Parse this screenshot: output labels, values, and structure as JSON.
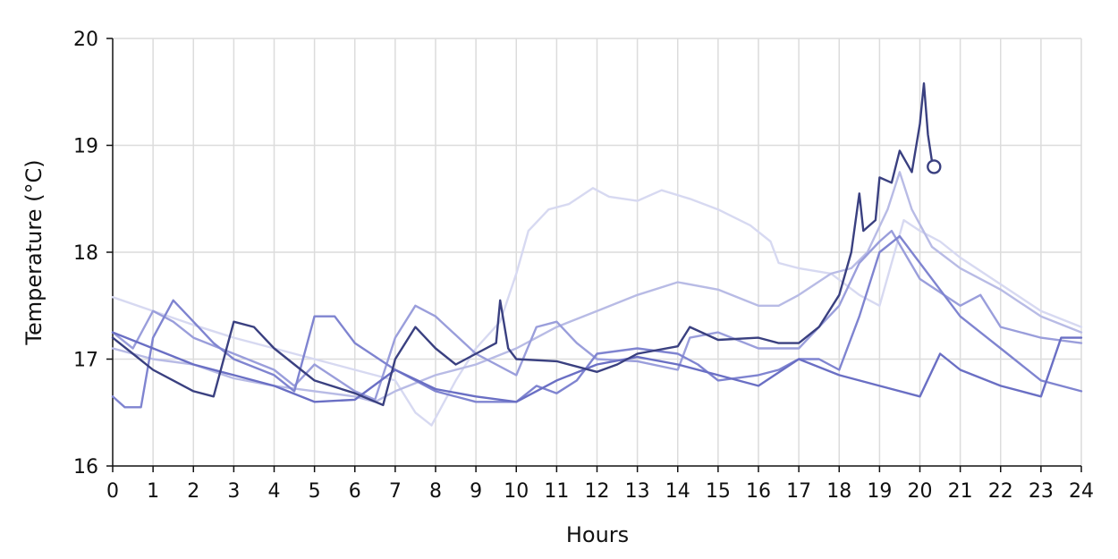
{
  "chart_data": {
    "type": "line",
    "title": "",
    "xlabel": "Hours",
    "ylabel": "Temperature (°C)",
    "xlim": [
      0,
      24
    ],
    "ylim": [
      16,
      20
    ],
    "xticks": [
      0,
      1,
      2,
      3,
      4,
      5,
      6,
      7,
      8,
      9,
      10,
      11,
      12,
      13,
      14,
      15,
      16,
      17,
      18,
      19,
      20,
      21,
      22,
      23,
      24
    ],
    "yticks": [
      16,
      17,
      18,
      19,
      20
    ],
    "grid": true,
    "legend": "none",
    "series": [
      {
        "color": "#d7d9f1",
        "points": [
          [
            0,
            17.58
          ],
          [
            1,
            17.45
          ],
          [
            2,
            17.32
          ],
          [
            3,
            17.2
          ],
          [
            4,
            17.1
          ],
          [
            5,
            17.0
          ],
          [
            6,
            16.9
          ],
          [
            7,
            16.8
          ],
          [
            7.5,
            16.5
          ],
          [
            7.9,
            16.38
          ],
          [
            8.5,
            16.8
          ],
          [
            9,
            17.1
          ],
          [
            9.6,
            17.35
          ],
          [
            10,
            17.8
          ],
          [
            10.3,
            18.2
          ],
          [
            10.8,
            18.4
          ],
          [
            11.3,
            18.45
          ],
          [
            11.9,
            18.6
          ],
          [
            12.3,
            18.52
          ],
          [
            13,
            18.48
          ],
          [
            13.6,
            18.58
          ],
          [
            14.3,
            18.5
          ],
          [
            15,
            18.4
          ],
          [
            15.8,
            18.25
          ],
          [
            16.3,
            18.1
          ],
          [
            16.5,
            17.9
          ],
          [
            17,
            17.85
          ],
          [
            17.8,
            17.8
          ],
          [
            18.5,
            17.6
          ],
          [
            19,
            17.5
          ],
          [
            19.3,
            17.9
          ],
          [
            19.6,
            18.3
          ],
          [
            20,
            18.2
          ],
          [
            20.5,
            18.1
          ],
          [
            21,
            17.95
          ],
          [
            22,
            17.7
          ],
          [
            23,
            17.45
          ],
          [
            24,
            17.3
          ]
        ]
      },
      {
        "color": "#b8bbe5",
        "points": [
          [
            0,
            17.1
          ],
          [
            1,
            17.0
          ],
          [
            2,
            16.95
          ],
          [
            3,
            16.82
          ],
          [
            4,
            16.75
          ],
          [
            5,
            16.7
          ],
          [
            6,
            16.65
          ],
          [
            6.5,
            16.6
          ],
          [
            7,
            16.7
          ],
          [
            8,
            16.85
          ],
          [
            9,
            16.95
          ],
          [
            10,
            17.1
          ],
          [
            11,
            17.3
          ],
          [
            12,
            17.45
          ],
          [
            13,
            17.6
          ],
          [
            14,
            17.72
          ],
          [
            15,
            17.65
          ],
          [
            16,
            17.5
          ],
          [
            16.5,
            17.5
          ],
          [
            17,
            17.6
          ],
          [
            17.8,
            17.8
          ],
          [
            18.3,
            17.85
          ],
          [
            18.7,
            18.0
          ],
          [
            19.2,
            18.4
          ],
          [
            19.5,
            18.75
          ],
          [
            19.8,
            18.4
          ],
          [
            20.3,
            18.05
          ],
          [
            21,
            17.85
          ],
          [
            22,
            17.65
          ],
          [
            23,
            17.4
          ],
          [
            24,
            17.25
          ]
        ]
      },
      {
        "color": "#9a9edb",
        "points": [
          [
            0,
            17.25
          ],
          [
            0.5,
            17.1
          ],
          [
            1,
            17.45
          ],
          [
            1.5,
            17.35
          ],
          [
            2,
            17.2
          ],
          [
            3,
            17.05
          ],
          [
            4,
            16.9
          ],
          [
            4.5,
            16.75
          ],
          [
            5,
            16.95
          ],
          [
            6,
            16.7
          ],
          [
            6.5,
            16.62
          ],
          [
            7,
            17.2
          ],
          [
            7.5,
            17.5
          ],
          [
            8,
            17.4
          ],
          [
            9,
            17.05
          ],
          [
            10,
            16.85
          ],
          [
            10.5,
            17.3
          ],
          [
            11,
            17.35
          ],
          [
            11.5,
            17.15
          ],
          [
            12,
            17.0
          ],
          [
            13,
            16.98
          ],
          [
            14,
            16.9
          ],
          [
            14.3,
            17.2
          ],
          [
            15,
            17.25
          ],
          [
            16,
            17.1
          ],
          [
            17,
            17.1
          ],
          [
            18,
            17.5
          ],
          [
            18.5,
            17.9
          ],
          [
            19,
            18.1
          ],
          [
            19.3,
            18.2
          ],
          [
            20,
            17.75
          ],
          [
            21,
            17.5
          ],
          [
            21.5,
            17.6
          ],
          [
            22,
            17.3
          ],
          [
            23,
            17.2
          ],
          [
            24,
            17.15
          ]
        ]
      },
      {
        "color": "#7f84d0",
        "points": [
          [
            0,
            16.65
          ],
          [
            0.3,
            16.55
          ],
          [
            0.7,
            16.55
          ],
          [
            1,
            17.2
          ],
          [
            1.5,
            17.55
          ],
          [
            2,
            17.35
          ],
          [
            2.5,
            17.15
          ],
          [
            3,
            17.0
          ],
          [
            4,
            16.85
          ],
          [
            4.5,
            16.7
          ],
          [
            5,
            17.4
          ],
          [
            5.5,
            17.4
          ],
          [
            6,
            17.15
          ],
          [
            7,
            16.9
          ],
          [
            8,
            16.7
          ],
          [
            9,
            16.6
          ],
          [
            10,
            16.6
          ],
          [
            10.5,
            16.75
          ],
          [
            11,
            16.68
          ],
          [
            11.5,
            16.8
          ],
          [
            12,
            17.05
          ],
          [
            13,
            17.1
          ],
          [
            14,
            17.05
          ],
          [
            14.5,
            16.95
          ],
          [
            15,
            16.8
          ],
          [
            16,
            16.85
          ],
          [
            16.5,
            16.9
          ],
          [
            17,
            17.0
          ],
          [
            17.5,
            17.0
          ],
          [
            18,
            16.9
          ],
          [
            18.5,
            17.4
          ],
          [
            19,
            18.0
          ],
          [
            19.5,
            18.15
          ],
          [
            20,
            17.9
          ],
          [
            21,
            17.4
          ],
          [
            22,
            17.1
          ],
          [
            23,
            16.8
          ],
          [
            24,
            16.7
          ]
        ]
      },
      {
        "color": "#6a6fc4",
        "points": [
          [
            0,
            17.25
          ],
          [
            1,
            17.1
          ],
          [
            2,
            16.95
          ],
          [
            3,
            16.85
          ],
          [
            4,
            16.75
          ],
          [
            5,
            16.6
          ],
          [
            6,
            16.62
          ],
          [
            7,
            16.9
          ],
          [
            8,
            16.72
          ],
          [
            9,
            16.65
          ],
          [
            10,
            16.6
          ],
          [
            11,
            16.8
          ],
          [
            12,
            16.95
          ],
          [
            13,
            17.02
          ],
          [
            14,
            16.95
          ],
          [
            15,
            16.85
          ],
          [
            16,
            16.75
          ],
          [
            17,
            17.0
          ],
          [
            18,
            16.85
          ],
          [
            19,
            16.75
          ],
          [
            20,
            16.65
          ],
          [
            20.5,
            17.05
          ],
          [
            21,
            16.9
          ],
          [
            22,
            16.75
          ],
          [
            23,
            16.65
          ],
          [
            23.5,
            17.2
          ],
          [
            24,
            17.2
          ]
        ]
      },
      {
        "color": "#3a4080",
        "points": [
          [
            0,
            17.2
          ],
          [
            0.5,
            17.05
          ],
          [
            1,
            16.9
          ],
          [
            1.5,
            16.8
          ],
          [
            2,
            16.7
          ],
          [
            2.5,
            16.65
          ],
          [
            3,
            17.35
          ],
          [
            3.5,
            17.3
          ],
          [
            4,
            17.1
          ],
          [
            4.5,
            16.95
          ],
          [
            5,
            16.8
          ],
          [
            6,
            16.68
          ],
          [
            6.7,
            16.57
          ],
          [
            7,
            17.0
          ],
          [
            7.5,
            17.3
          ],
          [
            8,
            17.1
          ],
          [
            8.5,
            16.95
          ],
          [
            9,
            17.05
          ],
          [
            9.5,
            17.15
          ],
          [
            9.6,
            17.55
          ],
          [
            9.8,
            17.1
          ],
          [
            10,
            17.0
          ],
          [
            11,
            16.98
          ],
          [
            12,
            16.88
          ],
          [
            12.5,
            16.95
          ],
          [
            13,
            17.05
          ],
          [
            14,
            17.12
          ],
          [
            14.3,
            17.3
          ],
          [
            15,
            17.18
          ],
          [
            16,
            17.2
          ],
          [
            16.5,
            17.15
          ],
          [
            17,
            17.15
          ],
          [
            17.5,
            17.3
          ],
          [
            18,
            17.6
          ],
          [
            18.3,
            18.0
          ],
          [
            18.5,
            18.55
          ],
          [
            18.6,
            18.2
          ],
          [
            18.9,
            18.3
          ],
          [
            19,
            18.7
          ],
          [
            19.3,
            18.65
          ],
          [
            19.5,
            18.95
          ],
          [
            19.8,
            18.75
          ],
          [
            20,
            19.2
          ],
          [
            20.1,
            19.58
          ],
          [
            20.2,
            19.1
          ],
          [
            20.3,
            18.85
          ]
        ]
      }
    ],
    "end_marker": {
      "x": 20.35,
      "y": 18.8,
      "color": "#3a4080"
    }
  }
}
